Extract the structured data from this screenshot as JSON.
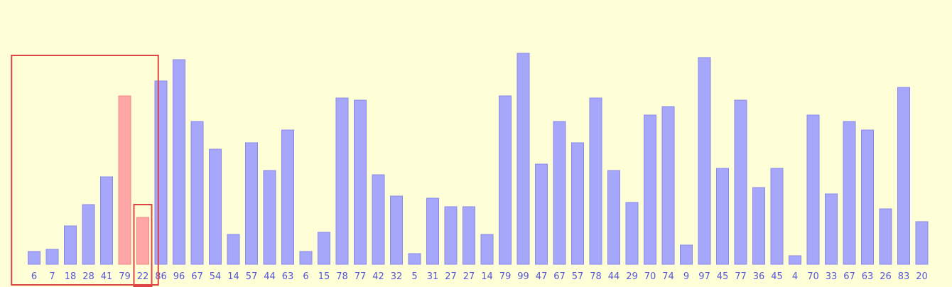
{
  "chart_data": {
    "type": "bar",
    "title": "",
    "xlabel": "",
    "ylabel": "",
    "ylim": [
      0,
      100
    ],
    "grid": false,
    "values": [
      6,
      7,
      18,
      28,
      41,
      79,
      22,
      86,
      96,
      67,
      54,
      14,
      57,
      44,
      63,
      6,
      15,
      78,
      77,
      42,
      32,
      5,
      31,
      27,
      27,
      14,
      79,
      99,
      47,
      67,
      57,
      78,
      44,
      29,
      70,
      74,
      9,
      97,
      45,
      77,
      36,
      45,
      4,
      70,
      33,
      67,
      63,
      26,
      83,
      20
    ],
    "highlighted_indices": [
      5,
      6
    ],
    "sorted_region_range": [
      0,
      7
    ],
    "compare_index": 6,
    "colors": {
      "background": "#ffffd7",
      "bar_fill": "#a6a6fa",
      "bar_stroke": "#8888ee",
      "highlight_fill": "#ffa6a6",
      "highlight_stroke": "#ee8888",
      "label": "#5555dd",
      "box_stroke": "#dd4444"
    }
  }
}
